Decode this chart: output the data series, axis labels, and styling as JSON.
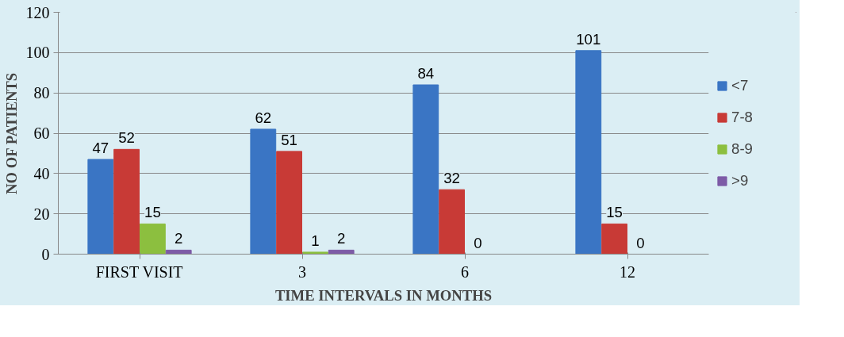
{
  "chart_data": {
    "type": "bar",
    "xlabel": "TIME INTERVALS IN MONTHS",
    "ylabel": "NO OF PATIENTS",
    "categories": [
      "FIRST VISIT",
      "3",
      "6",
      "12"
    ],
    "series": [
      {
        "name": "<7",
        "color": "#3a75c4",
        "values": [
          47,
          62,
          84,
          101
        ]
      },
      {
        "name": "7-8",
        "color": "#c83a36",
        "values": [
          52,
          51,
          32,
          15
        ]
      },
      {
        "name": "8-9",
        "color": "#8cbf3f",
        "values": [
          15,
          1,
          0,
          0
        ]
      },
      {
        "name": ">9",
        "color": "#7d5ba6",
        "values": [
          2,
          2,
          null,
          null
        ]
      }
    ],
    "ylim": [
      0,
      120
    ],
    "yticks": [
      0,
      20,
      40,
      60,
      80,
      100,
      120
    ],
    "grid": "y",
    "legend": "right",
    "data_labels": true
  }
}
